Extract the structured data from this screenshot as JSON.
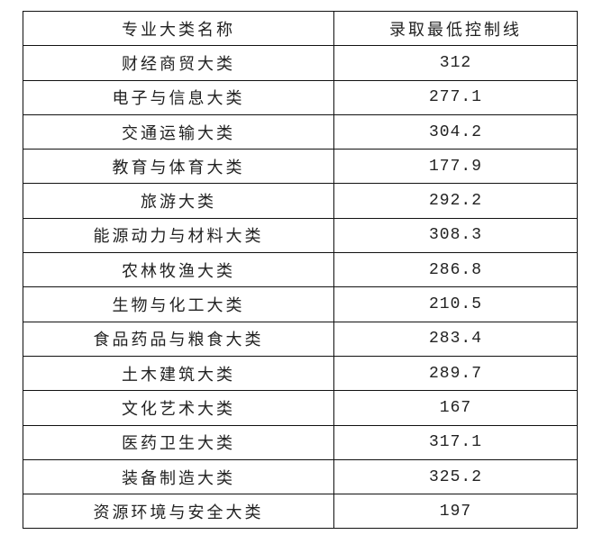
{
  "table": {
    "headers": [
      "专业大类名称",
      "录取最低控制线"
    ],
    "rows": [
      [
        "财经商贸大类",
        "312"
      ],
      [
        "电子与信息大类",
        "277.1"
      ],
      [
        "交通运输大类",
        "304.2"
      ],
      [
        "教育与体育大类",
        "177.9"
      ],
      [
        "旅游大类",
        "292.2"
      ],
      [
        "能源动力与材料大类",
        "308.3"
      ],
      [
        "农林牧渔大类",
        "286.8"
      ],
      [
        "生物与化工大类",
        "210.5"
      ],
      [
        "食品药品与粮食大类",
        "283.4"
      ],
      [
        "土木建筑大类",
        "289.7"
      ],
      [
        "文化艺术大类",
        "167"
      ],
      [
        "医药卫生大类",
        "317.1"
      ],
      [
        "装备制造大类",
        "325.2"
      ],
      [
        "资源环境与安全大类",
        "197"
      ]
    ]
  }
}
